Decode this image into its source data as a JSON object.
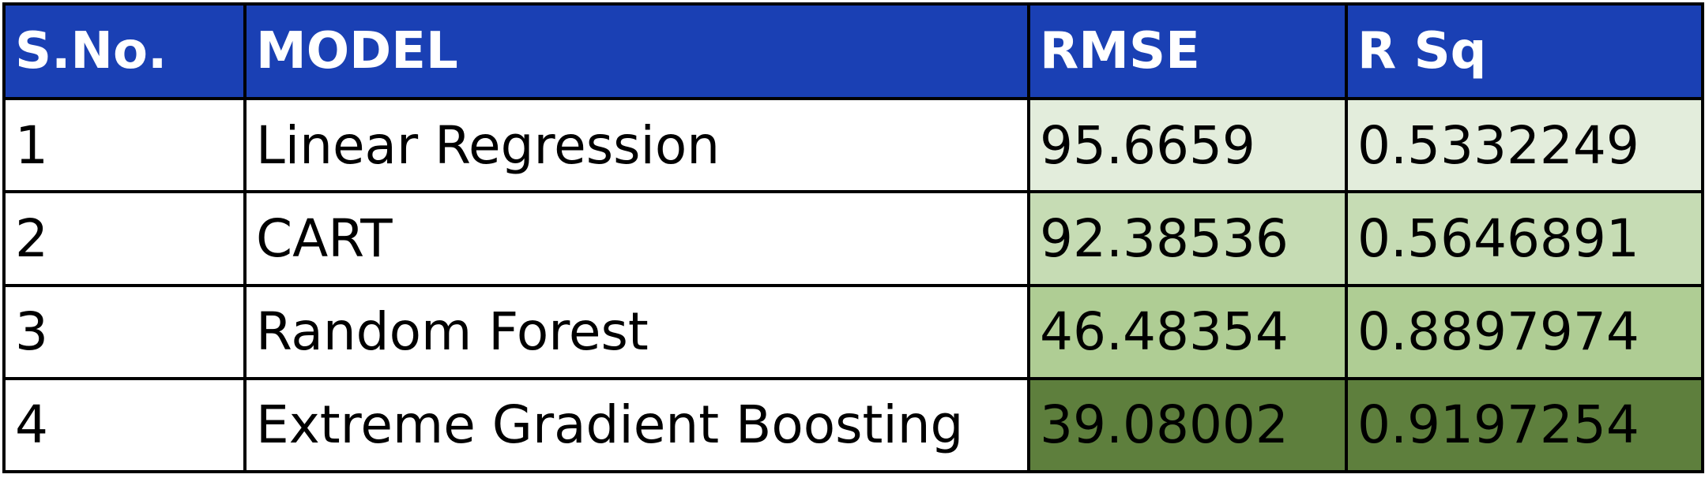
{
  "header": {
    "sno": "S.No.",
    "model": "MODEL",
    "rmse": "RMSE",
    "rsq": "R Sq"
  },
  "colors": {
    "header_bg": "#1a40b4",
    "header_text": "#ffffff",
    "row_shading": [
      "#e3eddc",
      "#c6dcb4",
      "#afcd94",
      "#5e7f3d"
    ]
  },
  "rows": [
    {
      "sno": "1",
      "model": "Linear Regression",
      "rmse": "95.6659",
      "rsq": "0.5332249"
    },
    {
      "sno": "2",
      "model": "CART",
      "rmse": "92.38536",
      "rsq": "0.5646891"
    },
    {
      "sno": "3",
      "model": "Random Forest",
      "rmse": "46.48354",
      "rsq": "0.8897974"
    },
    {
      "sno": "4",
      "model": "Extreme Gradient Boosting",
      "rmse": "39.08002",
      "rsq": "0.9197254"
    }
  ]
}
